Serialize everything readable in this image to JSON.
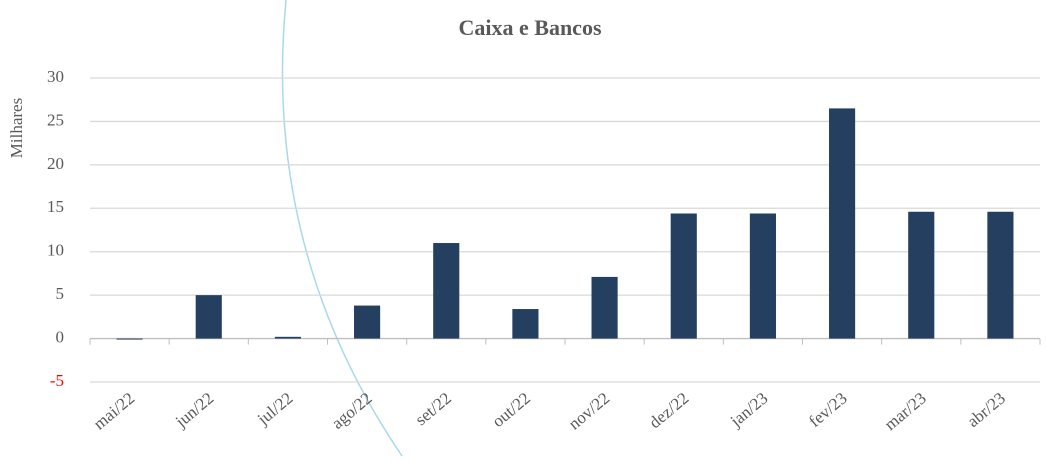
{
  "chart_data": {
    "type": "bar",
    "title": "Caixa e Bancos",
    "y_axis_title": "Milhares",
    "categories": [
      "mai/22",
      "jun/22",
      "jul/22",
      "ago/22",
      "set/22",
      "out/22",
      "nov/22",
      "dez/22",
      "jan/23",
      "fev/23",
      "mar/23",
      "abr/23"
    ],
    "values": [
      -0.1,
      5.0,
      0.2,
      3.8,
      11.0,
      3.4,
      7.1,
      14.4,
      14.4,
      26.5,
      14.6,
      14.6
    ],
    "color": "#253f61",
    "ylim": [
      -5,
      30
    ],
    "yticks": [
      -5,
      0,
      5,
      10,
      15,
      20,
      25,
      30
    ],
    "negative_tick_color": "#ff0000",
    "grid": true
  }
}
